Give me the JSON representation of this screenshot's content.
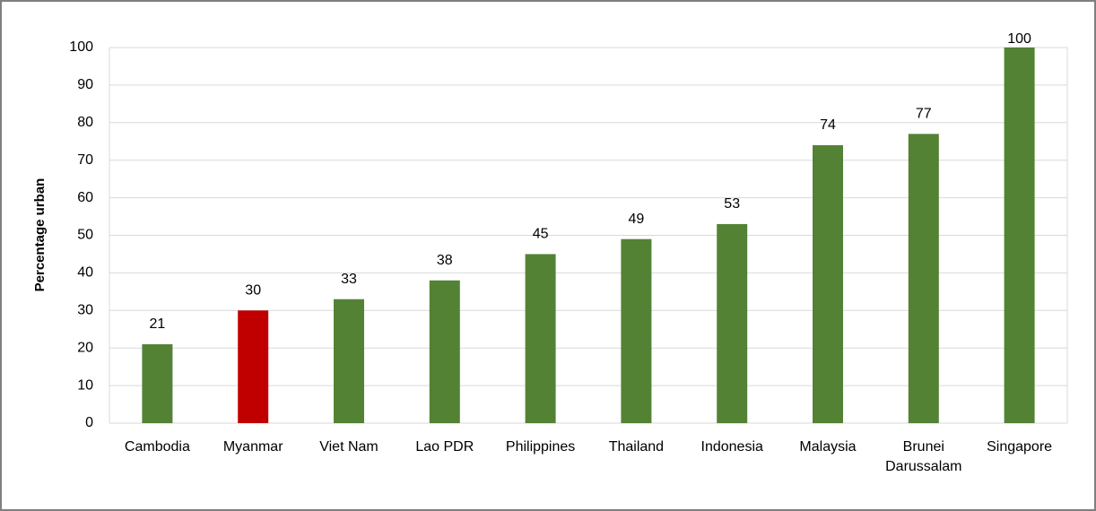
{
  "chart_data": {
    "type": "bar",
    "y_axis_label": "Percentage urban",
    "categories": [
      "Cambodia",
      "Myanmar",
      "Viet Nam",
      "Lao PDR",
      "Philippines",
      "Thailand",
      "Indonesia",
      "Malaysia",
      "Brunei Darussalam",
      "Singapore"
    ],
    "values": [
      21,
      30,
      33,
      38,
      45,
      49,
      53,
      74,
      77,
      100
    ],
    "colors": [
      "#548235",
      "#c00000",
      "#548235",
      "#548235",
      "#548235",
      "#548235",
      "#548235",
      "#548235",
      "#548235",
      "#548235"
    ],
    "ylim": [
      0,
      100
    ],
    "yticks": [
      0,
      10,
      20,
      30,
      40,
      50,
      60,
      70,
      80,
      90,
      100
    ],
    "grid": true,
    "data_labels": true
  }
}
